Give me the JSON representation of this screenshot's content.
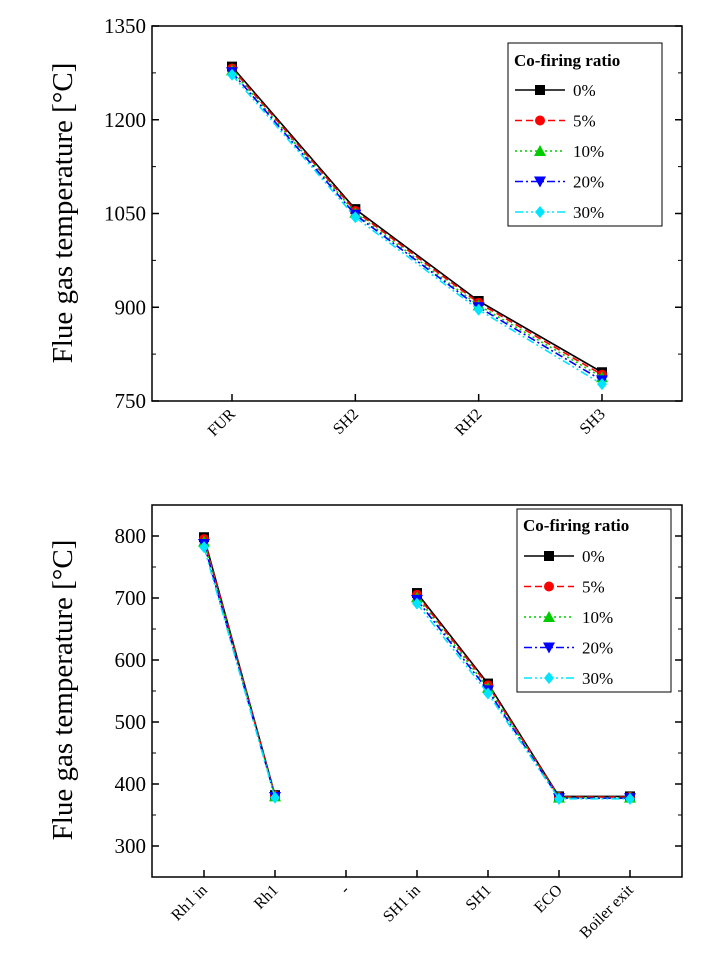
{
  "chart_data": [
    {
      "type": "line",
      "id": "top",
      "title": "",
      "xlabel": "",
      "ylabel": "Flue gas temperature [°C]",
      "ylim": [
        750,
        1350
      ],
      "yticks": [
        750,
        900,
        1050,
        1200,
        1350
      ],
      "categories": [
        "FUR",
        "SH2",
        "RH2",
        "SH3"
      ],
      "legend": {
        "title": "Co-firing ratio",
        "position": "top-right"
      },
      "series": [
        {
          "name": "0%",
          "color": "#000000",
          "marker": "square",
          "dash": "solid",
          "values": [
            1285,
            1057,
            910,
            796
          ]
        },
        {
          "name": "5%",
          "color": "#ff0000",
          "marker": "circle",
          "dash": "dashed",
          "values": [
            1282,
            1054,
            907,
            792
          ]
        },
        {
          "name": "10%",
          "color": "#00cc00",
          "marker": "triangle-up",
          "dash": "dotted",
          "values": [
            1279,
            1051,
            903,
            788
          ]
        },
        {
          "name": "20%",
          "color": "#0000ff",
          "marker": "triangle-down",
          "dash": "dashdot",
          "values": [
            1276,
            1048,
            900,
            783
          ]
        },
        {
          "name": "30%",
          "color": "#00e5ff",
          "marker": "diamond",
          "dash": "dashdotdot",
          "values": [
            1272,
            1044,
            896,
            777
          ]
        }
      ]
    },
    {
      "type": "line",
      "id": "bottom",
      "title": "",
      "xlabel": "",
      "ylabel": "Flue gas temperature [°C]",
      "ylim": [
        250,
        850
      ],
      "yticks": [
        300,
        400,
        500,
        600,
        700,
        800
      ],
      "categories": [
        "Rh1 in",
        "Rh1",
        "-",
        "SH1 in",
        "SH1",
        "ECO",
        "Boiler exit"
      ],
      "legend": {
        "title": "Co-firing ratio",
        "position": "top-right"
      },
      "series": [
        {
          "name": "0%",
          "color": "#000000",
          "marker": "square",
          "dash": "solid",
          "values": [
            798,
            382,
            null,
            708,
            562,
            380,
            380
          ]
        },
        {
          "name": "5%",
          "color": "#ff0000",
          "marker": "circle",
          "dash": "dashed",
          "values": [
            795,
            381,
            null,
            705,
            559,
            379,
            379
          ]
        },
        {
          "name": "10%",
          "color": "#00cc00",
          "marker": "triangle-up",
          "dash": "dotted",
          "values": [
            791,
            380,
            null,
            701,
            555,
            378,
            378
          ]
        },
        {
          "name": "20%",
          "color": "#0000ff",
          "marker": "triangle-down",
          "dash": "dashdot",
          "values": [
            787,
            379,
            null,
            697,
            551,
            377,
            377
          ]
        },
        {
          "name": "30%",
          "color": "#00e5ff",
          "marker": "diamond",
          "dash": "dashdotdot",
          "values": [
            782,
            378,
            null,
            691,
            546,
            376,
            376
          ]
        }
      ]
    }
  ]
}
